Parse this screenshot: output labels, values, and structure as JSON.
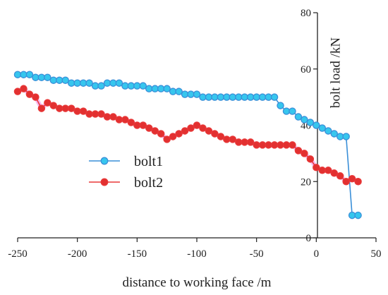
{
  "chart_data": {
    "type": "line",
    "title": "",
    "xlabel": "distance to working face /m",
    "ylabel": "bolt  load  /kN",
    "xlim": [
      -250,
      50
    ],
    "ylim": [
      0,
      80
    ],
    "x_ticks": [
      "-250",
      "-200",
      "-150",
      "-100",
      "-50",
      "0",
      "50"
    ],
    "y_ticks": [
      "0",
      "20",
      "40",
      "60",
      "80"
    ],
    "grid": false,
    "legend_position": "lower-left",
    "series": [
      {
        "name": "bolt1",
        "color": "#3a8fd8",
        "marker_fill": "#36c6ee",
        "x": [
          -250,
          -245,
          -240,
          -235,
          -230,
          -225,
          -220,
          -215,
          -210,
          -205,
          -200,
          -195,
          -190,
          -185,
          -180,
          -175,
          -170,
          -165,
          -160,
          -155,
          -150,
          -145,
          -140,
          -135,
          -130,
          -125,
          -120,
          -115,
          -110,
          -105,
          -100,
          -95,
          -90,
          -85,
          -80,
          -75,
          -70,
          -65,
          -60,
          -55,
          -50,
          -45,
          -40,
          -35,
          -30,
          -25,
          -20,
          -15,
          -10,
          -5,
          0,
          5,
          10,
          15,
          20,
          25,
          30,
          35
        ],
        "y": [
          58,
          58,
          58,
          57,
          57,
          57,
          56,
          56,
          56,
          55,
          55,
          55,
          55,
          54,
          54,
          55,
          55,
          55,
          54,
          54,
          54,
          54,
          53,
          53,
          53,
          53,
          52,
          52,
          51,
          51,
          51,
          50,
          50,
          50,
          50,
          50,
          50,
          50,
          50,
          50,
          50,
          50,
          50,
          50,
          47,
          45,
          45,
          43,
          42,
          41,
          40,
          39,
          38,
          37,
          36,
          36,
          8,
          8
        ]
      },
      {
        "name": "bolt2",
        "color": "#e83838",
        "marker_fill": "#e23030",
        "halo": "#f4a6ee",
        "x": [
          -250,
          -245,
          -240,
          -235,
          -230,
          -225,
          -220,
          -215,
          -210,
          -205,
          -200,
          -195,
          -190,
          -185,
          -180,
          -175,
          -170,
          -165,
          -160,
          -155,
          -150,
          -145,
          -140,
          -135,
          -130,
          -125,
          -120,
          -115,
          -110,
          -105,
          -100,
          -95,
          -90,
          -85,
          -80,
          -75,
          -70,
          -65,
          -60,
          -55,
          -50,
          -45,
          -40,
          -35,
          -30,
          -25,
          -20,
          -15,
          -10,
          -5,
          0,
          5,
          10,
          15,
          20,
          25,
          30,
          35
        ],
        "y": [
          52,
          53,
          51,
          50,
          46,
          48,
          47,
          46,
          46,
          46,
          45,
          45,
          44,
          44,
          44,
          43,
          43,
          42,
          42,
          41,
          40,
          40,
          39,
          38,
          37,
          35,
          36,
          37,
          38,
          39,
          40,
          39,
          38,
          37,
          36,
          35,
          35,
          34,
          34,
          34,
          33,
          33,
          33,
          33,
          33,
          33,
          33,
          31,
          30,
          28,
          25,
          24,
          24,
          23,
          22,
          20,
          21,
          20
        ]
      }
    ]
  }
}
